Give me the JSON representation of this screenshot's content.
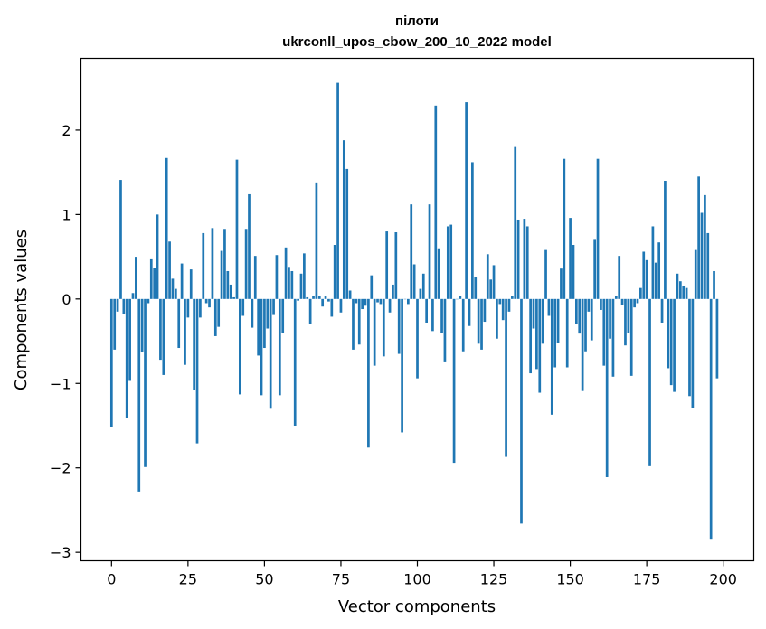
{
  "chart_data": {
    "type": "bar",
    "title_line1": "пілоти",
    "title_line2": "ukrconll_upos_cbow_200_10_2022 model",
    "xlabel": "Vector components",
    "ylabel": "Components values",
    "xlim": [
      -10,
      210
    ],
    "ylim": [
      -3.1,
      2.85
    ],
    "xticks": [
      0,
      25,
      50,
      75,
      100,
      125,
      150,
      175,
      200
    ],
    "xtick_labels": [
      "0",
      "25",
      "50",
      "75",
      "100",
      "125",
      "150",
      "175",
      "200"
    ],
    "yticks": [
      -3,
      -2,
      -1,
      0,
      1,
      2
    ],
    "ytick_labels": [
      "−3",
      "−2",
      "−1",
      "0",
      "1",
      "2"
    ],
    "bar_color": "#1f77b4",
    "values": [
      -1.52,
      -0.6,
      -0.15,
      1.41,
      -0.18,
      -1.41,
      -0.97,
      0.07,
      0.5,
      -2.28,
      -0.63,
      -1.99,
      -0.05,
      0.47,
      0.37,
      1.0,
      -0.72,
      -0.9,
      1.67,
      0.68,
      0.24,
      0.12,
      -0.58,
      0.42,
      -0.78,
      -0.22,
      0.35,
      -1.08,
      -1.71,
      -0.22,
      0.78,
      -0.05,
      -0.1,
      0.84,
      -0.44,
      -0.33,
      0.57,
      0.83,
      0.33,
      0.17,
      0.02,
      1.65,
      -1.13,
      -0.2,
      0.83,
      1.24,
      -0.34,
      0.51,
      -0.67,
      -1.14,
      -0.58,
      -0.35,
      -1.3,
      -0.19,
      0.52,
      -1.14,
      -0.4,
      0.61,
      0.38,
      0.33,
      -1.5,
      -0.02,
      0.3,
      0.54,
      0.02,
      -0.3,
      0.04,
      1.38,
      0.03,
      -0.09,
      0.03,
      -0.03,
      -0.21,
      0.64,
      2.56,
      -0.16,
      1.88,
      1.54,
      0.1,
      -0.6,
      -0.05,
      -0.54,
      -0.12,
      -0.08,
      -1.76,
      0.28,
      -0.79,
      -0.04,
      -0.06,
      -0.68,
      0.8,
      -0.16,
      0.17,
      0.79,
      -0.65,
      -1.58,
      0.0,
      -0.06,
      1.12,
      0.41,
      -0.94,
      0.12,
      0.3,
      -0.28,
      1.12,
      -0.38,
      2.29,
      0.6,
      -0.4,
      -0.75,
      0.86,
      0.88,
      -1.94,
      0.0,
      0.04,
      -0.62,
      2.33,
      -0.32,
      1.62,
      0.26,
      -0.53,
      -0.6,
      -0.27,
      0.53,
      0.23,
      0.4,
      -0.47,
      -0.06,
      -0.25,
      -1.87,
      -0.15,
      0.03,
      1.8,
      0.94,
      -2.66,
      0.95,
      0.86,
      -0.88,
      -0.35,
      -0.83,
      -1.11,
      -0.53,
      0.58,
      -0.2,
      -1.37,
      -0.81,
      -0.52,
      0.36,
      1.66,
      -0.81,
      0.96,
      0.64,
      -0.3,
      -0.41,
      -1.09,
      -0.62,
      -0.15,
      -0.49,
      0.7,
      1.66,
      -0.13,
      -0.79,
      -2.11,
      -0.47,
      -0.92,
      0.04,
      0.51,
      -0.07,
      -0.55,
      -0.4,
      -0.91,
      -0.1,
      -0.05,
      0.13,
      0.56,
      0.46,
      -1.98,
      0.86,
      0.43,
      0.67,
      -0.28,
      1.4,
      -0.82,
      -1.02,
      -1.1,
      0.3,
      0.21,
      0.15,
      0.13,
      -1.15,
      -1.29,
      0.58,
      1.45,
      1.02,
      1.23,
      0.78,
      -2.84,
      0.33,
      -0.94
    ]
  }
}
